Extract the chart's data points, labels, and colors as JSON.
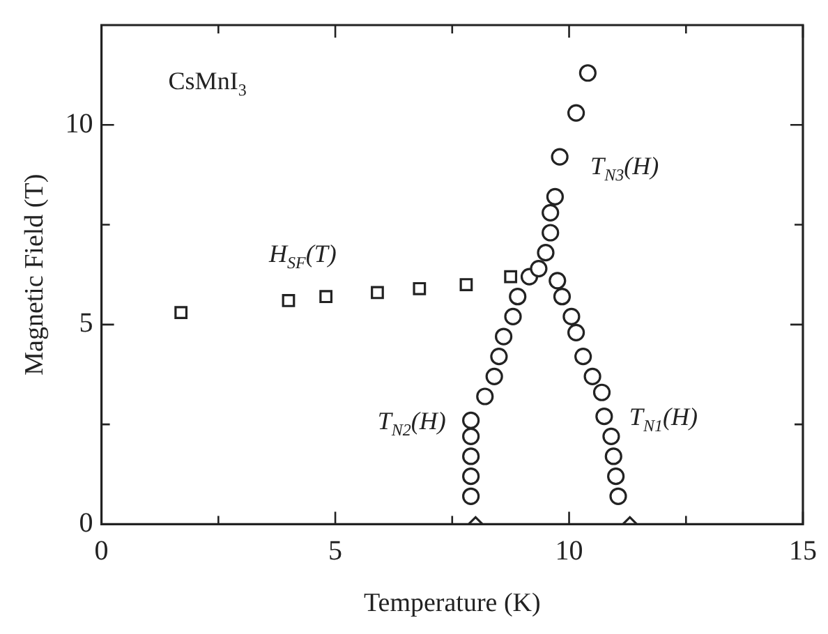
{
  "chart_data": {
    "type": "scatter",
    "xlabel": "Temperature (K)",
    "ylabel": "Magnetic Field (T)",
    "xlim": [
      0,
      15
    ],
    "ylim": [
      0,
      12.5
    ],
    "xticks": [
      0,
      {
        "value": 2.5,
        "label": null
      },
      5,
      {
        "value": 7.5,
        "label": null
      },
      10,
      {
        "value": 12.5,
        "label": null
      },
      15
    ],
    "yticks": [
      0,
      {
        "value": 2.5,
        "label": null
      },
      5,
      {
        "value": 7.5,
        "label": null
      },
      10
    ],
    "grid": false,
    "legend": false,
    "series": [
      {
        "name": "H$_{SF}$(T)",
        "color": "#222222",
        "marker": "square",
        "x": [
          1.7,
          4.0,
          4.8,
          5.9,
          6.8,
          7.8,
          8.75
        ],
        "values": [
          5.3,
          5.6,
          5.7,
          5.8,
          5.9,
          6.0,
          6.2
        ]
      },
      {
        "name": "T$_{N2}$(H)",
        "color": "#222222",
        "marker": "circle",
        "x": [
          7.9,
          7.9,
          7.9,
          7.9,
          7.9,
          8.2,
          8.4,
          8.5,
          8.6,
          8.8,
          8.9,
          9.15,
          9.35,
          9.5,
          9.6,
          9.6,
          9.7
        ],
        "values": [
          0.7,
          1.2,
          1.7,
          2.2,
          2.6,
          3.2,
          3.7,
          4.2,
          4.7,
          5.2,
          5.7,
          6.2,
          6.4,
          6.8,
          7.3,
          7.8,
          8.2
        ]
      },
      {
        "name": "T$_{N3}$(H)",
        "color": "#222222",
        "marker": "circle",
        "x": [
          9.8,
          10.15,
          10.4
        ],
        "values": [
          9.2,
          10.3,
          11.3
        ]
      },
      {
        "name": "T$_{N1}$(H)",
        "color": "#222222",
        "marker": "circle",
        "x": [
          9.75,
          9.85,
          10.05,
          10.15,
          10.3,
          10.5,
          10.7,
          10.75,
          10.9,
          10.95,
          11.0,
          11.05
        ],
        "values": [
          6.1,
          5.7,
          5.2,
          4.8,
          4.2,
          3.7,
          3.3,
          2.7,
          2.2,
          1.7,
          1.2,
          0.7
        ]
      },
      {
        "color": "#222222",
        "marker": "diamond",
        "x": [
          8.0,
          11.3
        ],
        "values": [
          0,
          0
        ]
      }
    ],
    "annotations": [
      "CsMnI$_{3}$"
    ]
  }
}
